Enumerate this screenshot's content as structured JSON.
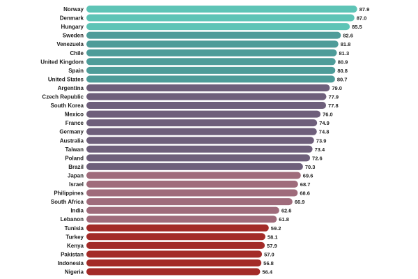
{
  "chart_data": {
    "type": "bar",
    "orientation": "horizontal",
    "title": "",
    "xlabel": "",
    "ylabel": "",
    "xlim": [
      0,
      90
    ],
    "categories": [
      "Norway",
      "Denmark",
      "Hungary",
      "Sweden",
      "Venezuela",
      "Chile",
      "United Kingdom",
      "Spain",
      "United States",
      "Argentina",
      "Czech Republic",
      "South Korea",
      "Mexico",
      "France",
      "Germany",
      "Australia",
      "Taiwan",
      "Poland",
      "Brazil",
      "Japan",
      "Israel",
      "Philippines",
      "South Africa",
      "India",
      "Lebanon",
      "Tunisia",
      "Turkey",
      "Kenya",
      "Pakistan",
      "Indonesia",
      "Nigeria"
    ],
    "values": [
      87.9,
      87.0,
      85.5,
      82.6,
      81.8,
      81.3,
      80.9,
      80.8,
      80.7,
      79.0,
      77.9,
      77.8,
      76.0,
      74.9,
      74.8,
      73.9,
      73.4,
      72.6,
      70.3,
      69.6,
      68.7,
      68.6,
      66.9,
      62.6,
      61.8,
      59.2,
      58.1,
      57.9,
      57.0,
      56.8,
      56.4
    ],
    "value_labels": [
      "87.9",
      "87.0",
      "85.5",
      "82.6",
      "81.8",
      "81.3",
      "80.9",
      "80.8",
      "80.7",
      "79.0",
      "77.9",
      "77.8",
      "76.0",
      "74.9",
      "74.8",
      "73.9",
      "73.4",
      "72.6",
      "70.3",
      "69.6",
      "68.7",
      "68.6",
      "66.9",
      "62.6",
      "61.8",
      "59.2",
      "58.1",
      "57.9",
      "57.0",
      "56.8",
      "56.4"
    ],
    "bar_colors": [
      "#5ec4b6",
      "#5ec4b6",
      "#5ec4b6",
      "#4e9c99",
      "#4e9c99",
      "#4e9c99",
      "#4e9c99",
      "#4e9c99",
      "#4e9c99",
      "#6e5f7b",
      "#6e5f7b",
      "#6e5f7b",
      "#6e5f7b",
      "#6e5f7b",
      "#6e5f7b",
      "#6e5f7b",
      "#6e5f7b",
      "#6e5f7b",
      "#6e5f7b",
      "#9f6b7b",
      "#9f6b7b",
      "#9f6b7b",
      "#9f6b7b",
      "#9f6b7b",
      "#9f6b7b",
      "#a32b28",
      "#a32b28",
      "#a32b28",
      "#a32b28",
      "#a32b28",
      "#a32b28"
    ]
  }
}
